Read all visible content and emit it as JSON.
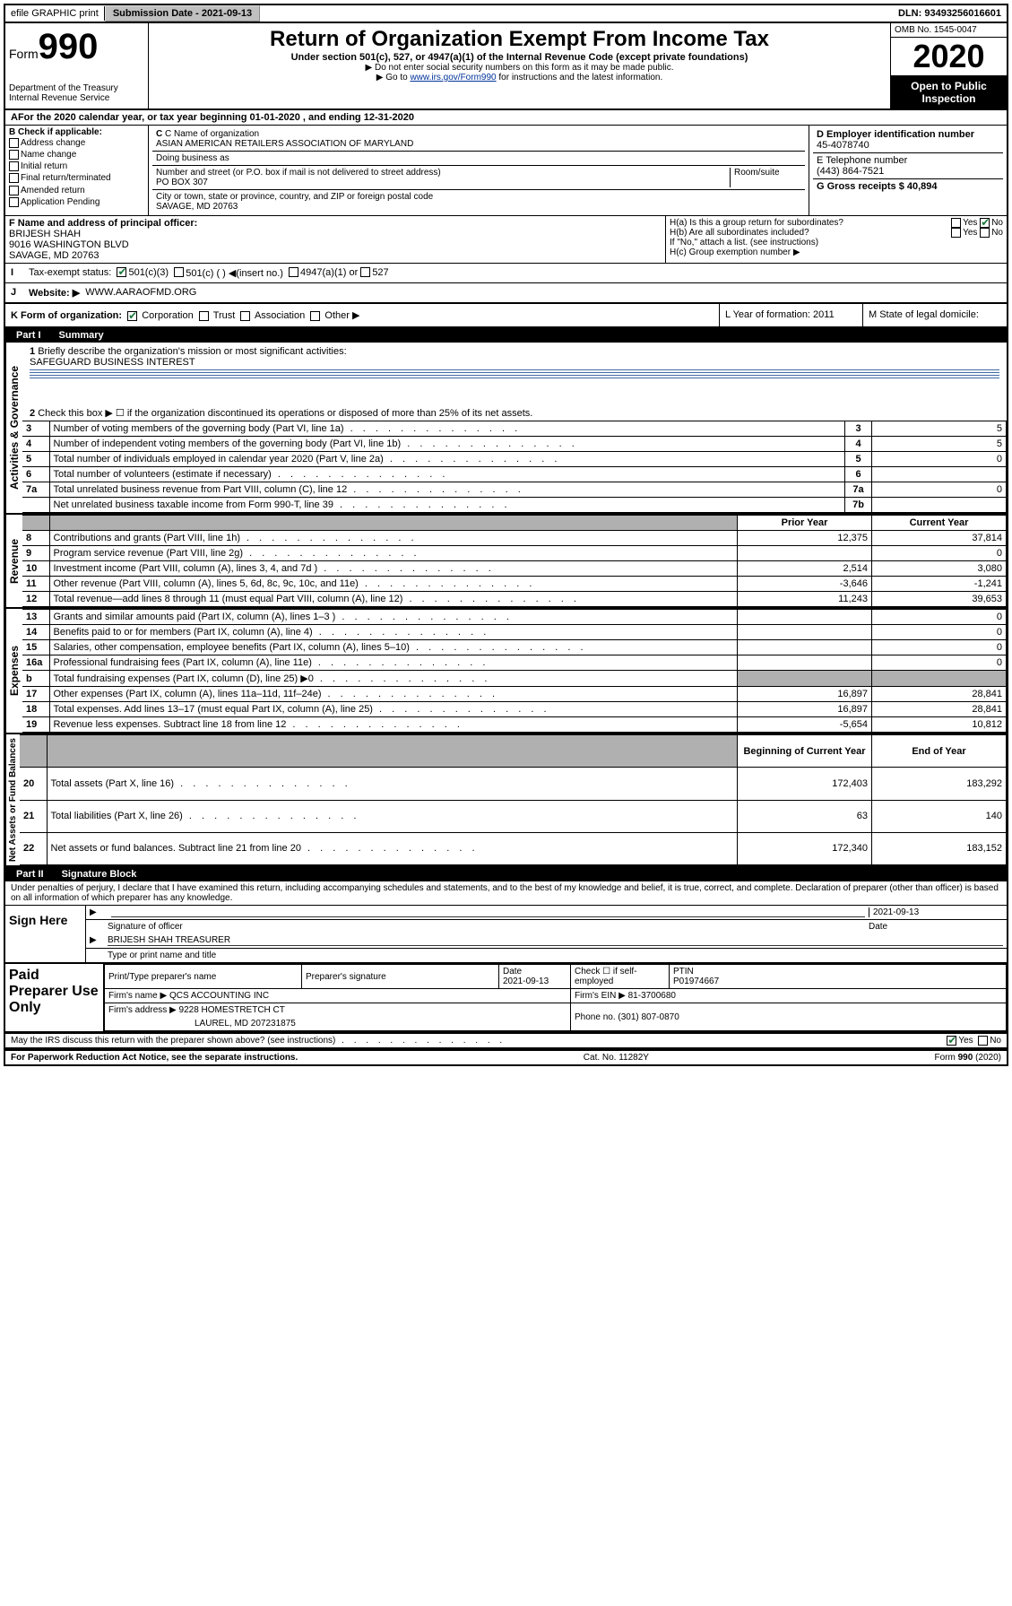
{
  "top_bar": {
    "efile_label": "efile GRAPHIC print",
    "submission_label": "Submission Date - 2021-09-13",
    "dln_label": "DLN: 93493256016601"
  },
  "header": {
    "form_prefix": "Form",
    "form_number": "990",
    "dept_text": "Department of the Treasury\nInternal Revenue Service",
    "title": "Return of Organization Exempt From Income Tax",
    "subtitle": "Under section 501(c), 527, or 4947(a)(1) of the Internal Revenue Code (except private foundations)",
    "note1": "▶ Do not enter social security numbers on this form as it may be made public.",
    "note2_prefix": "▶ Go to ",
    "note2_link": "www.irs.gov/Form990",
    "note2_suffix": " for instructions and the latest information.",
    "omb": "OMB No. 1545-0047",
    "year": "2020",
    "open_public": "Open to Public Inspection"
  },
  "section_a": {
    "cal_year": "For the 2020 calendar year, or tax year beginning 01-01-2020   , and ending 12-31-2020"
  },
  "section_b": {
    "heading": "B Check if applicable:",
    "opts": [
      "Address change",
      "Name change",
      "Initial return",
      "Final return/terminated",
      "Amended return",
      "Application Pending"
    ]
  },
  "section_c": {
    "name_label": "C Name of organization",
    "name_value": "ASIAN AMERICAN RETAILERS ASSOCIATION OF MARYLAND",
    "dba_label": "Doing business as",
    "addr_label": "Number and street (or P.O. box if mail is not delivered to street address)",
    "addr_value": "PO BOX 307",
    "room_label": "Room/suite",
    "city_label": "City or town, state or province, country, and ZIP or foreign postal code",
    "city_value": "SAVAGE, MD  20763"
  },
  "section_d": {
    "ein_label": "D Employer identification number",
    "ein_value": "45-4078740",
    "phone_label": "E Telephone number",
    "phone_value": "(443) 864-7521",
    "gross_label": "G Gross receipts $ 40,894"
  },
  "section_f": {
    "label": "F  Name and address of principal officer:",
    "name": "BRIJESH SHAH",
    "addr1": "9016 WASHINGTON BLVD",
    "addr2": "SAVAGE, MD  20763"
  },
  "section_h": {
    "a_label": "H(a)  Is this a group return for subordinates?",
    "b_label": "H(b)  Are all subordinates included?",
    "b_note": "If \"No,\" attach a list. (see instructions)",
    "c_label": "H(c)  Group exemption number ▶"
  },
  "section_i": {
    "label": "Tax-exempt status:",
    "opt1": "501(c)(3)",
    "opt2": "501(c) (  ) ◀(insert no.)",
    "opt3": "4947(a)(1) or",
    "opt4": "527"
  },
  "section_j": {
    "label": "Website: ▶",
    "value": "WWW.AARAOFMD.ORG"
  },
  "section_k": {
    "label": "K Form of organization:",
    "opts": [
      "Corporation",
      "Trust",
      "Association",
      "Other ▶"
    ]
  },
  "section_l": {
    "label": "L Year of formation: 2011"
  },
  "section_m": {
    "label": "M State of legal domicile:"
  },
  "part1": {
    "label": "Part I",
    "title": "Summary",
    "q1": "Briefly describe the organization's mission or most significant activities:",
    "q1_value": "SAFEGUARD BUSINESS INTEREST",
    "q2": "Check this box ▶ ☐  if the organization discontinued its operations or disposed of more than 25% of its net assets.",
    "vertical_labels": [
      "Activities & Governance",
      "Revenue",
      "Expenses",
      "Net Assets or Fund Balances"
    ],
    "rows_gov": [
      {
        "n": "3",
        "text": "Number of voting members of the governing body (Part VI, line 1a)",
        "nc": "3",
        "val": "5"
      },
      {
        "n": "4",
        "text": "Number of independent voting members of the governing body (Part VI, line 1b)",
        "nc": "4",
        "val": "5"
      },
      {
        "n": "5",
        "text": "Total number of individuals employed in calendar year 2020 (Part V, line 2a)",
        "nc": "5",
        "val": "0"
      },
      {
        "n": "6",
        "text": "Total number of volunteers (estimate if necessary)",
        "nc": "6",
        "val": ""
      },
      {
        "n": "7a",
        "text": "Total unrelated business revenue from Part VIII, column (C), line 12",
        "nc": "7a",
        "val": "0"
      },
      {
        "n": "",
        "text": "Net unrelated business taxable income from Form 990-T, line 39",
        "nc": "7b",
        "val": ""
      }
    ],
    "header_prior": "Prior Year",
    "header_current": "Current Year",
    "rows_rev": [
      {
        "n": "8",
        "text": "Contributions and grants (Part VIII, line 1h)",
        "prior": "12,375",
        "curr": "37,814"
      },
      {
        "n": "9",
        "text": "Program service revenue (Part VIII, line 2g)",
        "prior": "",
        "curr": "0"
      },
      {
        "n": "10",
        "text": "Investment income (Part VIII, column (A), lines 3, 4, and 7d )",
        "prior": "2,514",
        "curr": "3,080"
      },
      {
        "n": "11",
        "text": "Other revenue (Part VIII, column (A), lines 5, 6d, 8c, 9c, 10c, and 11e)",
        "prior": "-3,646",
        "curr": "-1,241"
      },
      {
        "n": "12",
        "text": "Total revenue—add lines 8 through 11 (must equal Part VIII, column (A), line 12)",
        "prior": "11,243",
        "curr": "39,653"
      }
    ],
    "rows_exp": [
      {
        "n": "13",
        "text": "Grants and similar amounts paid (Part IX, column (A), lines 1–3 )",
        "prior": "",
        "curr": "0"
      },
      {
        "n": "14",
        "text": "Benefits paid to or for members (Part IX, column (A), line 4)",
        "prior": "",
        "curr": "0"
      },
      {
        "n": "15",
        "text": "Salaries, other compensation, employee benefits (Part IX, column (A), lines 5–10)",
        "prior": "",
        "curr": "0"
      },
      {
        "n": "16a",
        "text": "Professional fundraising fees (Part IX, column (A), line 11e)",
        "prior": "",
        "curr": "0"
      },
      {
        "n": "b",
        "text": "Total fundraising expenses (Part IX, column (D), line 25) ▶0",
        "prior": "SHADE",
        "curr": "SHADE"
      },
      {
        "n": "17",
        "text": "Other expenses (Part IX, column (A), lines 11a–11d, 11f–24e)",
        "prior": "16,897",
        "curr": "28,841"
      },
      {
        "n": "18",
        "text": "Total expenses. Add lines 13–17 (must equal Part IX, column (A), line 25)",
        "prior": "16,897",
        "curr": "28,841"
      },
      {
        "n": "19",
        "text": "Revenue less expenses. Subtract line 18 from line 12",
        "prior": "-5,654",
        "curr": "10,812"
      }
    ],
    "header_begin": "Beginning of Current Year",
    "header_end": "End of Year",
    "rows_net": [
      {
        "n": "20",
        "text": "Total assets (Part X, line 16)",
        "prior": "172,403",
        "curr": "183,292"
      },
      {
        "n": "21",
        "text": "Total liabilities (Part X, line 26)",
        "prior": "63",
        "curr": "140"
      },
      {
        "n": "22",
        "text": "Net assets or fund balances. Subtract line 21 from line 20",
        "prior": "172,340",
        "curr": "183,152"
      }
    ]
  },
  "part2": {
    "label": "Part II",
    "title": "Signature Block",
    "decl": "Under penalties of perjury, I declare that I have examined this return, including accompanying schedules and statements, and to the best of my knowledge and belief, it is true, correct, and complete. Declaration of preparer (other than officer) is based on all information of which preparer has any knowledge.",
    "sign_here": "Sign Here",
    "sig_date": "2021-09-13",
    "sig_label": "Signature of officer",
    "date_label": "Date",
    "officer_name": "BRIJESH SHAH  TREASURER",
    "type_label": "Type or print name and title"
  },
  "paid_prep": {
    "label": "Paid Preparer Use Only",
    "col_name": "Print/Type preparer's name",
    "col_sig": "Preparer's signature",
    "col_date": "Date",
    "date_val": "2021-09-13",
    "col_check": "Check ☐ if self-employed",
    "col_ptin": "PTIN",
    "ptin_val": "P01974667",
    "firm_name_label": "Firm's name     ▶",
    "firm_name": "QCS ACCOUNTING INC",
    "firm_ein_label": "Firm's EIN ▶",
    "firm_ein": "81-3700680",
    "firm_addr_label": "Firm's address ▶",
    "firm_addr1": "9228 HOMESTRETCH CT",
    "firm_addr2": "LAUREL, MD  207231875",
    "phone_label": "Phone no. (301) 807-0870"
  },
  "footer": {
    "discuss": "May the IRS discuss this return with the preparer shown above? (see instructions)",
    "paperwork": "For Paperwork Reduction Act Notice, see the separate instructions.",
    "cat": "Cat. No. 11282Y",
    "form": "Form 990 (2020)"
  },
  "yes": "Yes",
  "no": "No"
}
